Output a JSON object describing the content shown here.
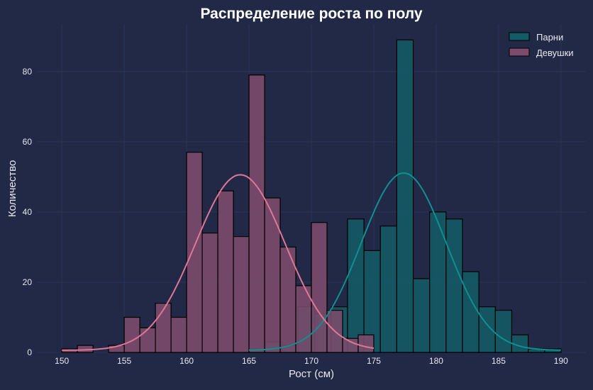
{
  "chart_data": {
    "type": "bar",
    "title": "Распределение роста по полу",
    "xlabel": "Рост (см)",
    "ylabel": "Количество",
    "xlim": [
      148,
      192
    ],
    "ylim": [
      0,
      93.5
    ],
    "xticks": [
      150,
      155,
      160,
      165,
      170,
      175,
      180,
      185,
      190
    ],
    "yticks": [
      0,
      20,
      40,
      60,
      80
    ],
    "grid": true,
    "legend_position": "top-right",
    "colors": {
      "background": "#212946",
      "grid": "#2A3459",
      "text": "#e8e8f0"
    },
    "series": [
      {
        "name": "Парни",
        "fill": "#135b67",
        "line": "#0f8f8f",
        "bin_start": 165,
        "bin_width": 1.316,
        "counts": [
          1,
          3,
          2,
          13,
          11,
          13,
          38,
          29,
          36,
          89,
          21,
          40,
          38,
          23,
          13,
          12,
          5,
          1,
          1
        ],
        "kde": {
          "mean": 177.4,
          "sd": 3.4,
          "peak": 50.5,
          "range": [
            165,
            190
          ]
        }
      },
      {
        "name": "Девушки",
        "fill": "#7d4b6c",
        "line": "#e07696",
        "bin_start": 150,
        "bin_width": 1.25,
        "counts": [
          1,
          2,
          0,
          2,
          10,
          7,
          14,
          10,
          57,
          34,
          46,
          33,
          79,
          44,
          30,
          19,
          37,
          12,
          4,
          5
        ],
        "kde": {
          "mean": 164.3,
          "sd": 3.6,
          "peak": 50,
          "range": [
            150,
            175
          ]
        }
      }
    ]
  }
}
